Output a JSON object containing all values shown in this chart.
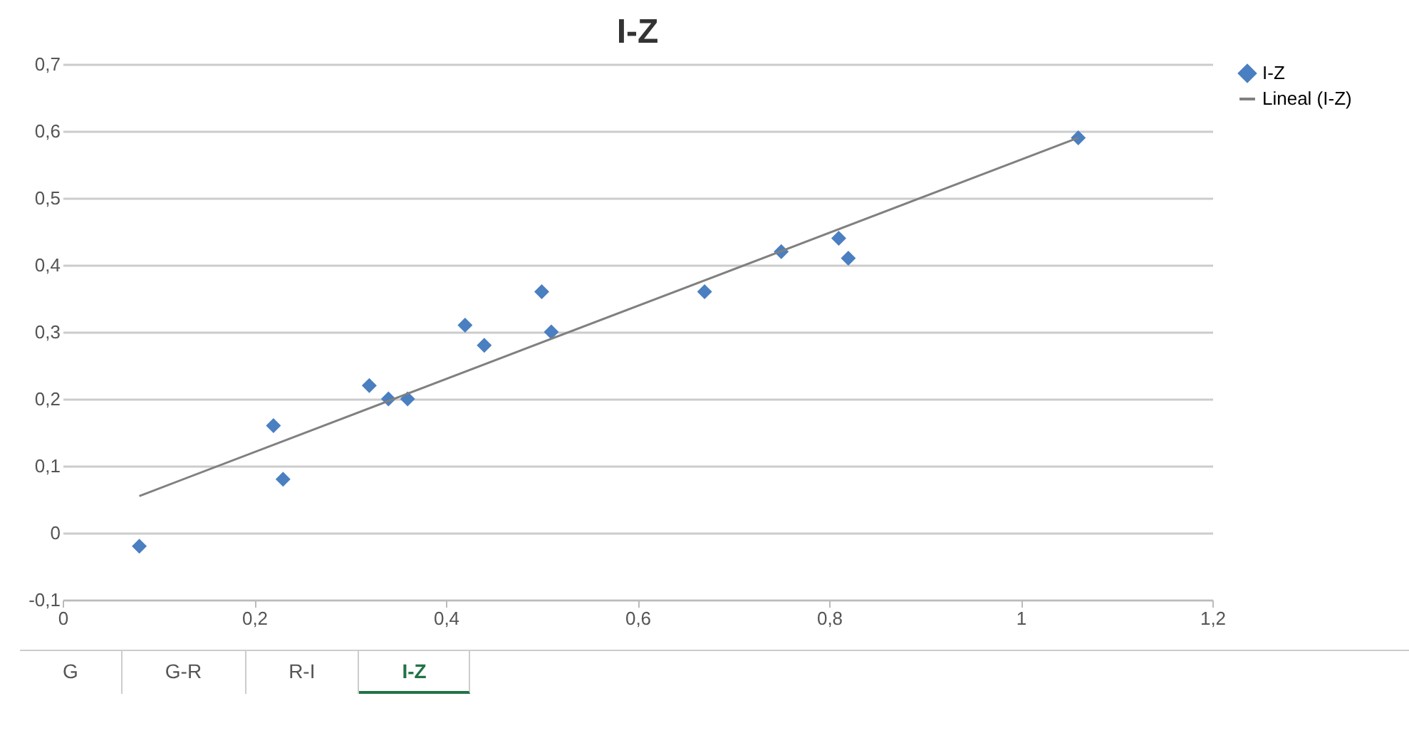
{
  "chart_data": {
    "type": "scatter",
    "title": "I-Z",
    "series": [
      {
        "name": "I-Z",
        "marker": "diamond",
        "color": "#4a7fc1",
        "x": [
          0.08,
          0.22,
          0.23,
          0.32,
          0.34,
          0.36,
          0.42,
          0.44,
          0.5,
          0.51,
          0.67,
          0.75,
          0.81,
          0.82,
          1.06
        ],
        "values": [
          -0.02,
          0.16,
          0.08,
          0.22,
          0.2,
          0.2,
          0.31,
          0.28,
          0.36,
          0.3,
          0.36,
          0.42,
          0.44,
          0.41,
          0.59
        ]
      },
      {
        "name": "Lineal (I-Z)",
        "type": "line",
        "marker": "none",
        "color": "#808080",
        "x": [
          0.08,
          1.06
        ],
        "values": [
          0.055,
          0.59
        ]
      }
    ],
    "xlim": [
      0,
      1.2
    ],
    "ylim": [
      -0.1,
      0.7
    ],
    "xticks": [
      0,
      {
        "value": 0.2,
        "label": "0,2"
      },
      {
        "value": 0.4,
        "label": "0,4"
      },
      {
        "value": 0.6,
        "label": "0,6"
      },
      {
        "value": 0.8,
        "label": "0,8"
      },
      1,
      {
        "value": 1.2,
        "label": "1,2"
      }
    ],
    "yticks": [
      {
        "value": -0.1,
        "label": "-0,1"
      },
      0,
      {
        "value": 0.1,
        "label": "0,1"
      },
      {
        "value": 0.2,
        "label": "0,2"
      },
      {
        "value": 0.3,
        "label": "0,3"
      },
      {
        "value": 0.4,
        "label": "0,4"
      },
      {
        "value": 0.5,
        "label": "0,5"
      },
      {
        "value": 0.6,
        "label": "0,6"
      },
      {
        "value": 0.7,
        "label": "0,7"
      }
    ],
    "grid": "y",
    "legend": "right",
    "annotations": [
      "G",
      "G-R",
      "R-I",
      "I-Z"
    ]
  }
}
